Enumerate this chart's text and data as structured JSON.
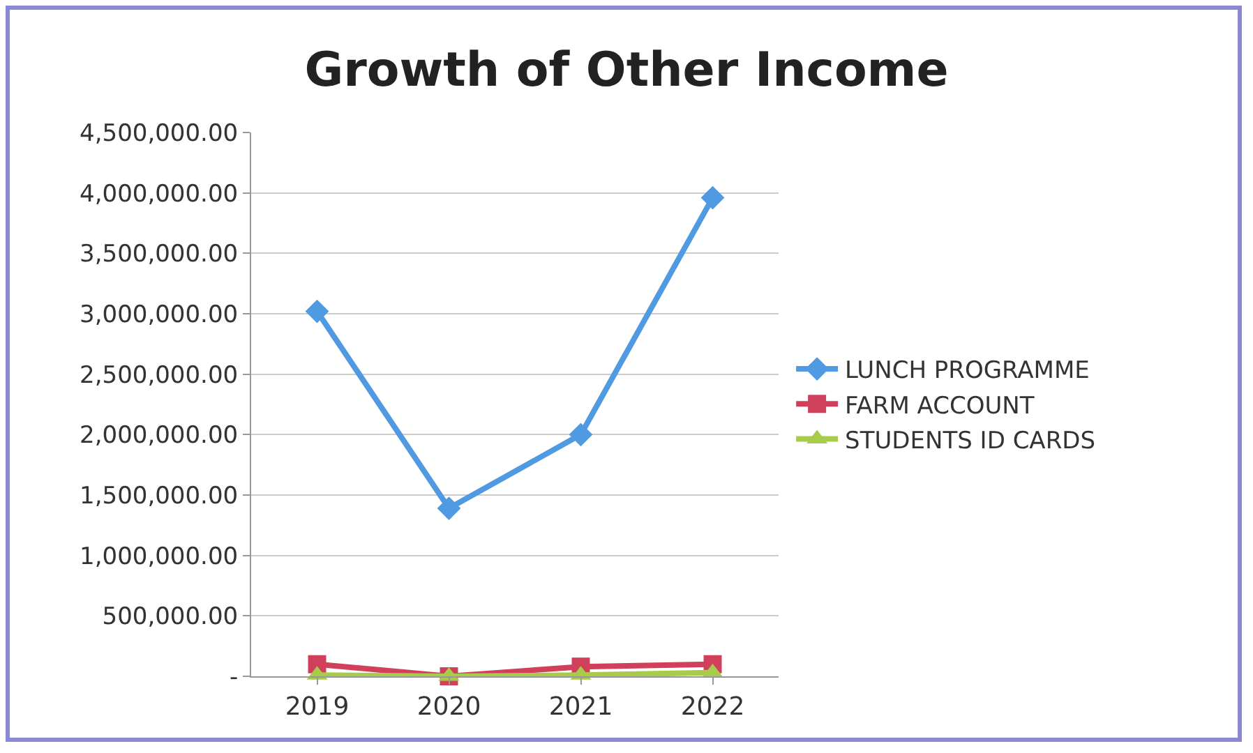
{
  "chart_data": {
    "type": "line",
    "title": "Growth of Other Income",
    "categories": [
      "2019",
      "2020",
      "2021",
      "2022"
    ],
    "series": [
      {
        "name": "LUNCH PROGRAMME",
        "color": "#4f9ae0",
        "marker": "diamond",
        "values": [
          3020000,
          1390000,
          2000000,
          3960000
        ]
      },
      {
        "name": "FARM ACCOUNT",
        "color": "#d0405a",
        "marker": "square",
        "values": [
          100000,
          0,
          80000,
          100000
        ]
      },
      {
        "name": "STUDENTS ID CARDS",
        "color": "#a8cc4a",
        "marker": "triangle",
        "values": [
          10000,
          0,
          10000,
          30000
        ]
      }
    ],
    "ylim": [
      0,
      4500000
    ],
    "yticks": [
      {
        "value": 0,
        "label": "-"
      },
      {
        "value": 500000,
        "label": "500,000.00"
      },
      {
        "value": 1000000,
        "label": "1,000,000.00"
      },
      {
        "value": 1500000,
        "label": "1,500,000.00"
      },
      {
        "value": 2000000,
        "label": "2,000,000.00"
      },
      {
        "value": 2500000,
        "label": "2,500,000.00"
      },
      {
        "value": 3000000,
        "label": "3,000,000.00"
      },
      {
        "value": 3500000,
        "label": "3,500,000.00"
      },
      {
        "value": 4000000,
        "label": "4,000,000.00"
      },
      {
        "value": 4500000,
        "label": "4,500,000.00"
      }
    ],
    "grid": "y",
    "legend": "right",
    "line_style": "solid"
  }
}
